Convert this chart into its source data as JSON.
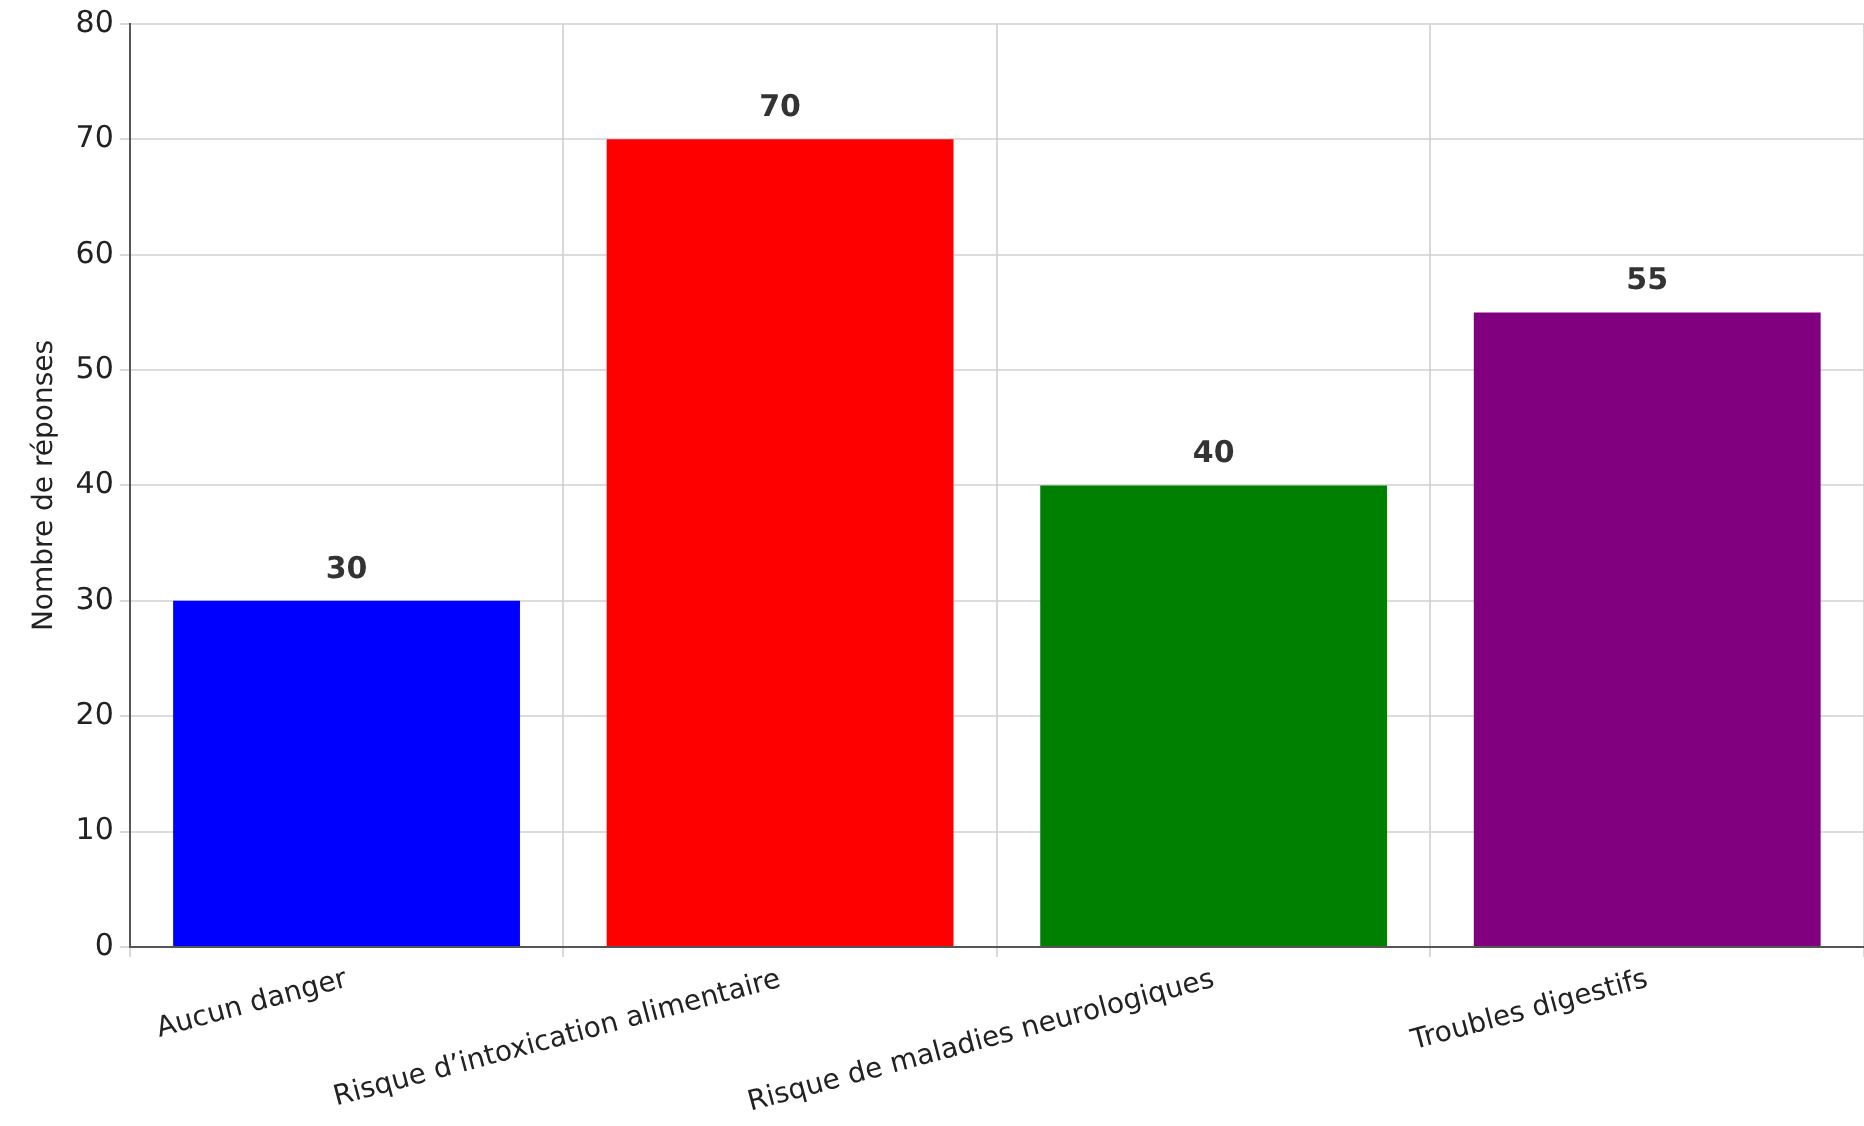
{
  "chart_data": {
    "type": "bar",
    "ylabel": "Nombre de réponses",
    "categories": [
      "Aucun danger",
      "Risque d’intoxication alimentaire",
      "Risque de maladies neurologiques",
      "Troubles digestifs"
    ],
    "values": [
      30,
      70,
      40,
      55
    ],
    "colors": [
      "#0000ff",
      "#ff0000",
      "#008000",
      "#800080"
    ],
    "ylim": [
      0,
      80
    ],
    "yticks": [
      0,
      10,
      20,
      30,
      40,
      50,
      60,
      70,
      80
    ],
    "grid": true,
    "data_labels": true,
    "legend": false
  }
}
